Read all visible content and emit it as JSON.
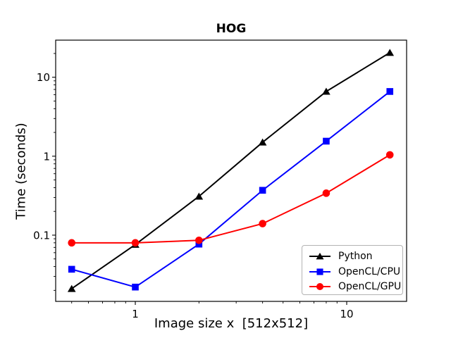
{
  "figure": {
    "title": "HOG",
    "xlabel": "Image size x  [512x512]",
    "ylabel": "Time (seconds)"
  },
  "chart_data": {
    "type": "line",
    "title": "HOG",
    "xlabel": "Image size x  [512x512]",
    "ylabel": "Time (seconds)",
    "x_scale": "log",
    "y_scale": "log",
    "grid": false,
    "x": [
      0.5,
      1,
      2,
      4,
      8,
      16
    ],
    "series": [
      {
        "name": "Python",
        "color": "#000000",
        "marker": "triangle",
        "values": [
          0.021,
          0.076,
          0.31,
          1.5,
          6.6,
          20.5
        ]
      },
      {
        "name": "OpenCL/CPU",
        "color": "#0000ff",
        "marker": "square",
        "values": [
          0.037,
          0.022,
          0.077,
          0.37,
          1.55,
          6.6
        ]
      },
      {
        "name": "OpenCL/GPU",
        "color": "#ff0000",
        "marker": "circle",
        "values": [
          0.08,
          0.08,
          0.086,
          0.14,
          0.34,
          1.04
        ]
      }
    ],
    "xlim": [
      0.42,
      19.2
    ],
    "ylim": [
      0.0145,
      29.5
    ],
    "x_ticks": [
      {
        "value": 1,
        "label": "1"
      },
      {
        "value": 10,
        "label": "10"
      }
    ],
    "y_ticks": [
      {
        "value": 0.1,
        "label": "0.1"
      },
      {
        "value": 1,
        "label": "1"
      },
      {
        "value": 10,
        "label": "10"
      }
    ],
    "legend": {
      "position": "lower right",
      "labels": [
        "Python",
        "OpenCL/CPU",
        "OpenCL/GPU"
      ]
    }
  }
}
